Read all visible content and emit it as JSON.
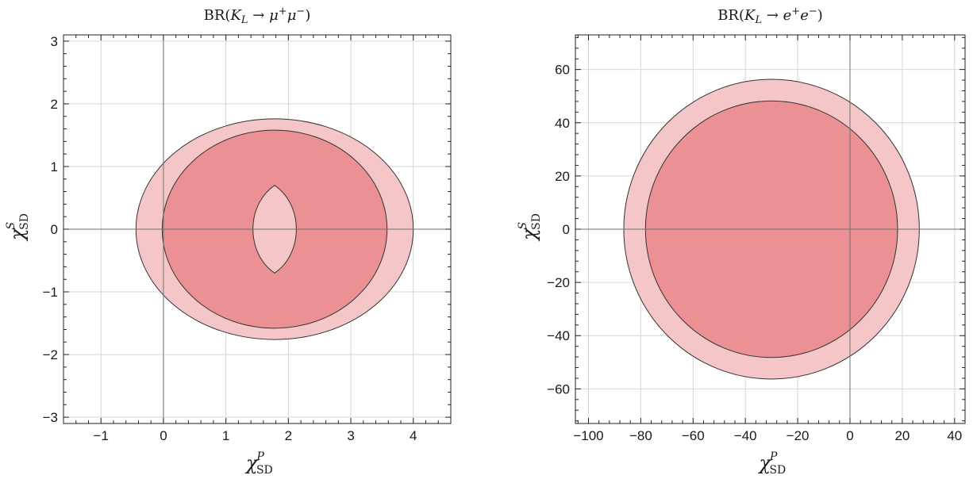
{
  "chart_data": [
    {
      "type": "contour-region",
      "title": {
        "prefix": "BR(",
        "kaon": "K",
        "kaon_sub": "L",
        "arrow": " → ",
        "lepton": "μ",
        "plus": "+",
        "lepton2": "μ",
        "minus": "−",
        "suffix": ")"
      },
      "xlabel": {
        "symbol": "χ",
        "sup": "P",
        "sub": "SD"
      },
      "ylabel": {
        "symbol": "χ",
        "sup": "S",
        "sub": "SD"
      },
      "xlim": [
        -1.6,
        4.6
      ],
      "ylim": [
        -3.1,
        3.1
      ],
      "xticks": [
        -1,
        0,
        1,
        2,
        3,
        4
      ],
      "yticks": [
        -3,
        -2,
        -1,
        0,
        1,
        2,
        3
      ],
      "xtick_labels": [
        "−1",
        "0",
        "1",
        "2",
        "3",
        "4"
      ],
      "ytick_labels": [
        "−3",
        "−2",
        "−1",
        "0",
        "1",
        "2",
        "3"
      ],
      "grid": true,
      "regions": [
        {
          "name": "outer",
          "shape": "ellipse",
          "center": [
            1.78,
            0
          ],
          "radii": [
            2.22,
            1.76
          ],
          "color": "#f5c6c7"
        },
        {
          "name": "inner",
          "shape": "ellipse",
          "center": [
            1.78,
            0
          ],
          "radii": [
            1.8,
            1.58
          ],
          "color": "#eb9193"
        },
        {
          "name": "hole",
          "shape": "lens",
          "center": [
            1.78,
            0
          ],
          "half_width": 0.37,
          "half_height": 0.7,
          "color": "#f5c6c7"
        }
      ]
    },
    {
      "type": "contour-region",
      "title": {
        "prefix": "BR(",
        "kaon": "K",
        "kaon_sub": "L",
        "arrow": " → ",
        "lepton": "e",
        "plus": "+",
        "lepton2": "e",
        "minus": "−",
        "suffix": ")"
      },
      "xlabel": {
        "symbol": "χ",
        "sup": "P",
        "sub": "SD"
      },
      "ylabel": {
        "symbol": "χ",
        "sup": "S",
        "sub": "SD"
      },
      "xlim": [
        -105,
        44
      ],
      "ylim": [
        -73,
        73
      ],
      "xticks": [
        -100,
        -80,
        -60,
        -40,
        -20,
        0,
        20,
        40
      ],
      "yticks": [
        -60,
        -40,
        -20,
        0,
        20,
        40,
        60
      ],
      "xtick_labels": [
        "−100",
        "−80",
        "−60",
        "−40",
        "−20",
        "0",
        "20",
        "40"
      ],
      "ytick_labels": [
        "−60",
        "−40",
        "−20",
        "0",
        "20",
        "40",
        "60"
      ],
      "grid": true,
      "regions": [
        {
          "name": "outer",
          "shape": "ellipse",
          "center": [
            -30,
            0
          ],
          "radii": [
            56.5,
            56.3
          ],
          "color": "#f5c6c7"
        },
        {
          "name": "inner",
          "shape": "ellipse",
          "center": [
            -30,
            0
          ],
          "radii": [
            48.2,
            48.2
          ],
          "color": "#eb9193"
        }
      ]
    }
  ],
  "colors": {
    "outer_region": "#f5c6c7",
    "inner_region": "#eb9193",
    "edge": "#333333"
  }
}
